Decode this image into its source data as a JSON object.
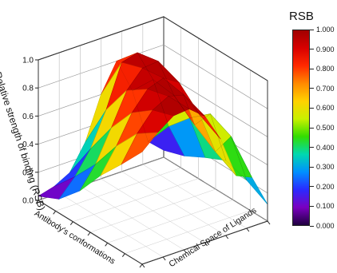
{
  "chart_data": {
    "type": "surface",
    "zlabel": "Relative strength of binding (RSB)",
    "xlabel": "Antibody's conformations",
    "ylabel": "Chemical Space of Ligands",
    "zlim": [
      0,
      1.0
    ],
    "z_ticks": [
      "0.0",
      "0.2",
      "0.4",
      "0.6",
      "0.8",
      "1.0"
    ],
    "colorbar": {
      "title": "RSB",
      "ticks": [
        "1.000",
        "0.900",
        "0.800",
        "0.700",
        "0.600",
        "0.500",
        "0.400",
        "0.300",
        "0.200",
        "0.100",
        "0.000"
      ],
      "colors": [
        "#a00000",
        "#d80000",
        "#ff2a00",
        "#ff8a00",
        "#ffd200",
        "#c8f000",
        "#33dd00",
        "#00d8b0",
        "#0090ff",
        "#2a2aff",
        "#7a00c0",
        "#200040"
      ]
    },
    "grid": true,
    "surface_z": [
      [
        0.03,
        0.06,
        0.12,
        0.3,
        0.6,
        0.8,
        0.55,
        0.15,
        0.05
      ],
      [
        0.1,
        0.22,
        0.38,
        0.62,
        0.92,
        0.95,
        0.72,
        0.35,
        0.1
      ],
      [
        0.25,
        0.4,
        0.62,
        0.85,
        0.97,
        0.98,
        0.7,
        0.5,
        0.18
      ],
      [
        0.45,
        0.62,
        0.82,
        0.95,
        0.99,
        0.92,
        0.58,
        0.62,
        0.25
      ],
      [
        0.62,
        0.8,
        0.93,
        0.99,
        0.96,
        0.78,
        0.48,
        0.55,
        0.2
      ],
      [
        0.8,
        0.9,
        0.98,
        0.99,
        0.9,
        0.7,
        0.4,
        0.35,
        0.12
      ]
    ]
  }
}
